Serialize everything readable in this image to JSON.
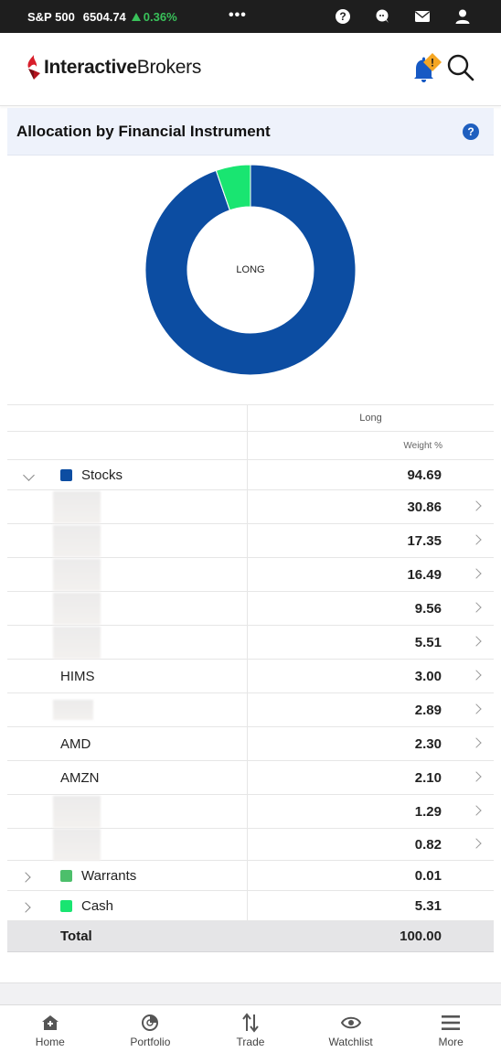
{
  "status_bar": {
    "index_name": "S&P 500",
    "index_value": "6504.74",
    "index_change": "0.36%",
    "change_direction": "up",
    "change_color": "#39c15a",
    "more_glyph": "•••",
    "icons": [
      "help-icon",
      "chat-icon",
      "mail-icon",
      "account-icon"
    ]
  },
  "header": {
    "logo_bold": "Interactive",
    "logo_regular": "Brokers",
    "brand_color": "#d81e2a",
    "notification_badge": "!",
    "icons": [
      "bell-icon",
      "search-icon"
    ]
  },
  "panel": {
    "title": "Allocation by Financial Instrument",
    "help_glyph": "?"
  },
  "chart_data": {
    "type": "pie",
    "center_label": "LONG",
    "slices": [
      {
        "name": "Stocks",
        "value": 94.69,
        "color": "#0c4da2"
      },
      {
        "name": "Warrants",
        "value": 0.01,
        "color": "#4cbf6b"
      },
      {
        "name": "Cash",
        "value": 5.31,
        "color": "#19e571"
      }
    ]
  },
  "table": {
    "column_header": "Long",
    "sub_header": "Weight %",
    "categories": {
      "stocks": {
        "label": "Stocks",
        "value": "94.69",
        "color": "#0c4da2"
      },
      "warrants": {
        "label": "Warrants",
        "value": "0.01",
        "color": "#4cbf6b"
      },
      "cash": {
        "label": "Cash",
        "value": "5.31",
        "color": "#19e571"
      }
    },
    "stock_rows": [
      {
        "ticker": "",
        "value": "30.86"
      },
      {
        "ticker": "",
        "value": "17.35"
      },
      {
        "ticker": "",
        "value": "16.49"
      },
      {
        "ticker": "",
        "value": "9.56"
      },
      {
        "ticker": "",
        "value": "5.51"
      },
      {
        "ticker": "HIMS",
        "value": "3.00"
      },
      {
        "ticker": "",
        "value": "2.89"
      },
      {
        "ticker": "AMD",
        "value": "2.30"
      },
      {
        "ticker": "AMZN",
        "value": "2.10"
      },
      {
        "ticker": "",
        "value": "1.29"
      },
      {
        "ticker": "",
        "value": "0.82"
      }
    ],
    "total_label": "Total",
    "total_value": "100.00"
  },
  "tabbar": {
    "tabs": [
      {
        "label": "Home",
        "icon": "home-icon"
      },
      {
        "label": "Portfolio",
        "icon": "portfolio-icon"
      },
      {
        "label": "Trade",
        "icon": "trade-icon"
      },
      {
        "label": "Watchlist",
        "icon": "watchlist-icon"
      },
      {
        "label": "More",
        "icon": "menu-icon"
      }
    ]
  }
}
